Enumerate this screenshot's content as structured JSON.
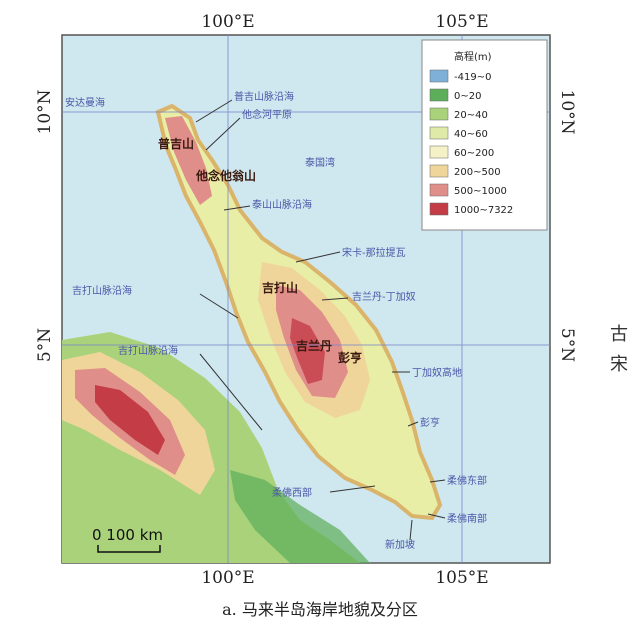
{
  "map": {
    "lon_labels": [
      "100°E",
      "105°E"
    ],
    "lat_labels": [
      "10°N",
      "5°N"
    ],
    "caption": "a. 马来半岛海岸地貌及分区",
    "scale_label": "0 100 km",
    "side_text": [
      "古",
      "宋"
    ],
    "mountains": [
      "普吉山",
      "他念他翁山",
      "吉打山",
      "吉兰丹",
      "彭亨"
    ],
    "regions": [
      "安达曼海",
      "普吉山脉沿海",
      "他念河平原",
      "泰国湾",
      "泰山山脉沿海",
      "宋卡-那拉提瓦",
      "吉兰丹-丁加奴",
      "吉打山脉沿海",
      "吉打山脉沿海",
      "丁加奴高地",
      "彭亨",
      "柔佛东部",
      "柔佛西部",
      "柔佛南部",
      "新加坡"
    ]
  },
  "legend": {
    "title": "高程(m)",
    "items": [
      {
        "label": "-419~0",
        "color": "#7fb0d8"
      },
      {
        "label": "0~20",
        "color": "#5dae5a"
      },
      {
        "label": "20~40",
        "color": "#a9d27a"
      },
      {
        "label": "40~60",
        "color": "#e0eaa8"
      },
      {
        "label": "60~200",
        "color": "#f6f2c8"
      },
      {
        "label": "200~500",
        "color": "#efd59a"
      },
      {
        "label": "500~1000",
        "color": "#e08e8a"
      },
      {
        "label": "1000~7322",
        "color": "#c43c46"
      }
    ]
  },
  "colors": {
    "sea": "#cfe7ef",
    "land_low": "#e9eea6",
    "coast": "#d9b46a",
    "grid": "#7a86c8",
    "label": "#4a56a8"
  }
}
